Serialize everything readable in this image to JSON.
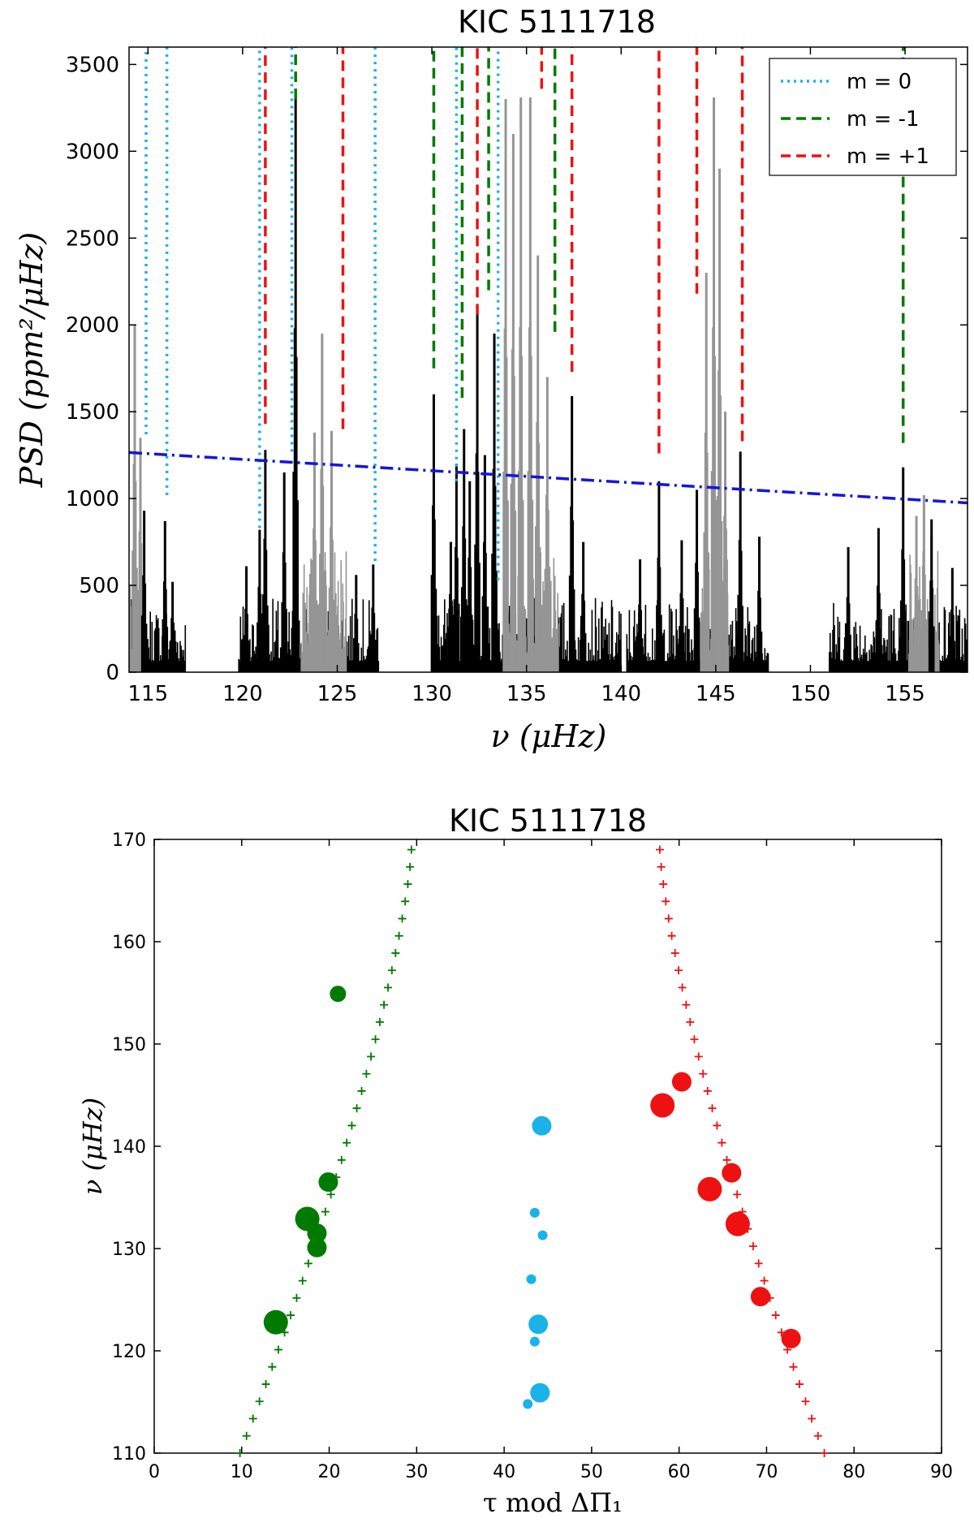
{
  "chart_data": [
    {
      "type": "line",
      "title": "KIC 5111718",
      "xlabel": "ν (μHz)",
      "ylabel": "PSD (ppm²/μHz)",
      "xlim": [
        114,
        158.3
      ],
      "ylim": [
        0,
        3600
      ],
      "xticks": [
        "115",
        "120",
        "125",
        "130",
        "135",
        "140",
        "145",
        "150",
        "155"
      ],
      "xtick_values": [
        115,
        120,
        125,
        130,
        135,
        140,
        145,
        150,
        155
      ],
      "yticks": [
        "0",
        "500",
        "1000",
        "1500",
        "2000",
        "2500",
        "3000",
        "3500"
      ],
      "ytick_values": [
        0,
        500,
        1000,
        1500,
        2000,
        2500,
        3000,
        3500
      ],
      "legend_position": "top-right",
      "legend": [
        {
          "label": "m = 0",
          "color": "#1ab2e8",
          "style": "dotted"
        },
        {
          "label": "m = -1",
          "color": "#007a00",
          "style": "dashed"
        },
        {
          "label": "m = +1",
          "color": "#ee1111",
          "style": "dashed"
        }
      ],
      "threshold_line": {
        "x": [
          114,
          158.3
        ],
        "y": [
          1265,
          975
        ],
        "color": "#1515dd",
        "style": "dashdot"
      },
      "spectrum": {
        "color_black": "#000000",
        "color_gray": "#959595",
        "black_segments": [
          [
            114,
            117
          ],
          [
            119.8,
            127.2
          ],
          [
            130,
            140
          ],
          [
            140.3,
            147.8
          ],
          [
            151,
            158.3
          ]
        ],
        "gray_segments": [
          [
            114,
            114.8
          ],
          [
            123.1,
            125.5
          ],
          [
            133.8,
            136.7
          ],
          [
            144.2,
            145.7
          ],
          [
            155.2,
            156.8
          ]
        ],
        "peaks_black": [
          {
            "nu": 114.8,
            "psd": 930
          },
          {
            "nu": 115.9,
            "psd": 870
          },
          {
            "nu": 116.3,
            "psd": 520
          },
          {
            "nu": 120.2,
            "psd": 610
          },
          {
            "nu": 120.9,
            "psd": 820
          },
          {
            "nu": 121.2,
            "psd": 1280
          },
          {
            "nu": 122.2,
            "psd": 1150
          },
          {
            "nu": 122.8,
            "psd": 3300
          },
          {
            "nu": 126.0,
            "psd": 560
          },
          {
            "nu": 126.9,
            "psd": 620
          },
          {
            "nu": 130.1,
            "psd": 1600
          },
          {
            "nu": 131.0,
            "psd": 750
          },
          {
            "nu": 131.3,
            "psd": 1200
          },
          {
            "nu": 131.7,
            "psd": 1400
          },
          {
            "nu": 132.0,
            "psd": 1100
          },
          {
            "nu": 132.4,
            "psd": 2100
          },
          {
            "nu": 132.8,
            "psd": 1250
          },
          {
            "nu": 133.3,
            "psd": 1950
          },
          {
            "nu": 137.4,
            "psd": 1590
          },
          {
            "nu": 138.0,
            "psd": 750
          },
          {
            "nu": 141.0,
            "psd": 650
          },
          {
            "nu": 142.0,
            "psd": 1100
          },
          {
            "nu": 143.2,
            "psd": 760
          },
          {
            "nu": 144.0,
            "psd": 1050
          },
          {
            "nu": 146.3,
            "psd": 1270
          },
          {
            "nu": 147.3,
            "psd": 780
          },
          {
            "nu": 152.0,
            "psd": 720
          },
          {
            "nu": 153.6,
            "psd": 830
          },
          {
            "nu": 154.9,
            "psd": 1180
          },
          {
            "nu": 156.4,
            "psd": 880
          },
          {
            "nu": 157.5,
            "psd": 600
          }
        ],
        "peaks_gray": [
          {
            "nu": 114.3,
            "psd": 2000
          },
          {
            "nu": 114.6,
            "psd": 1350
          },
          {
            "nu": 123.8,
            "psd": 1380
          },
          {
            "nu": 124.2,
            "psd": 1950
          },
          {
            "nu": 124.7,
            "psd": 1390
          },
          {
            "nu": 133.9,
            "psd": 3300
          },
          {
            "nu": 134.3,
            "psd": 3100
          },
          {
            "nu": 134.7,
            "psd": 3310
          },
          {
            "nu": 135.2,
            "psd": 3310
          },
          {
            "nu": 135.6,
            "psd": 2400
          },
          {
            "nu": 136.1,
            "psd": 1700
          },
          {
            "nu": 144.5,
            "psd": 2300
          },
          {
            "nu": 144.9,
            "psd": 3310
          },
          {
            "nu": 145.2,
            "psd": 2900
          },
          {
            "nu": 145.5,
            "psd": 1500
          },
          {
            "nu": 155.6,
            "psd": 900
          },
          {
            "nu": 156.0,
            "psd": 1020
          },
          {
            "nu": 156.4,
            "psd": 780
          }
        ]
      },
      "mode_lines": [
        {
          "m": "0",
          "nu": 114.9,
          "y0": 1370,
          "y1": 3600
        },
        {
          "m": "0",
          "nu": 116.0,
          "y0": 1020,
          "y1": 3600
        },
        {
          "m": "0",
          "nu": 120.9,
          "y0": 830,
          "y1": 3600
        },
        {
          "m": "0",
          "nu": 122.6,
          "y0": 1270,
          "y1": 3600
        },
        {
          "m": "0",
          "nu": 127.0,
          "y0": 640,
          "y1": 3600
        },
        {
          "m": "0",
          "nu": 131.3,
          "y0": 1100,
          "y1": 3600
        },
        {
          "m": "0",
          "nu": 133.5,
          "y0": 530,
          "y1": 3600
        },
        {
          "m": "-1",
          "nu": 122.8,
          "y0": 3300,
          "y1": 3600
        },
        {
          "m": "-1",
          "nu": 130.1,
          "y0": 1750,
          "y1": 3600
        },
        {
          "m": "-1",
          "nu": 131.6,
          "y0": 1580,
          "y1": 3600
        },
        {
          "m": "-1",
          "nu": 133.0,
          "y0": 2200,
          "y1": 3600
        },
        {
          "m": "-1",
          "nu": 136.5,
          "y0": 1960,
          "y1": 3600
        },
        {
          "m": "-1",
          "nu": 154.9,
          "y0": 1320,
          "y1": 3600
        },
        {
          "m": "+1",
          "nu": 121.2,
          "y0": 1430,
          "y1": 3600
        },
        {
          "m": "+1",
          "nu": 125.3,
          "y0": 1400,
          "y1": 3600
        },
        {
          "m": "+1",
          "nu": 132.4,
          "y0": 2060,
          "y1": 3600
        },
        {
          "m": "+1",
          "nu": 135.8,
          "y0": 3360,
          "y1": 3600
        },
        {
          "m": "+1",
          "nu": 137.4,
          "y0": 1730,
          "y1": 3600
        },
        {
          "m": "+1",
          "nu": 142.0,
          "y0": 1260,
          "y1": 3600
        },
        {
          "m": "+1",
          "nu": 144.0,
          "y0": 2180,
          "y1": 3600
        },
        {
          "m": "+1",
          "nu": 146.4,
          "y0": 1330,
          "y1": 3600
        }
      ]
    },
    {
      "type": "scatter",
      "title": "KIC 5111718",
      "xlabel": "τ mod ΔΠ₁",
      "ylabel": "ν (μHz)",
      "xlim": [
        0,
        90
      ],
      "ylim": [
        110,
        170
      ],
      "xticks": [
        "0",
        "10",
        "20",
        "30",
        "40",
        "50",
        "60",
        "70",
        "80",
        "90"
      ],
      "xtick_values": [
        0,
        10,
        20,
        30,
        40,
        50,
        60,
        70,
        80,
        90
      ],
      "yticks": [
        "110",
        "120",
        "130",
        "140",
        "150",
        "160",
        "170"
      ],
      "ytick_values": [
        110,
        120,
        130,
        140,
        150,
        160,
        170
      ],
      "model_series": [
        {
          "name": "m = -1 model",
          "color": "#007a00",
          "marker": "+",
          "x0": 9.8,
          "x1": 29.4,
          "n": 36
        },
        {
          "name": "m = +1 model",
          "color": "#ee1111",
          "marker": "+",
          "x0": 76.6,
          "x1": 57.8,
          "n": 36
        }
      ],
      "observed": [
        {
          "m": "-1",
          "color": "#007a00",
          "points": [
            {
              "x": 21.0,
              "y": 154.9,
              "size": "small"
            },
            {
              "x": 19.9,
              "y": 136.5,
              "size": "medium"
            },
            {
              "x": 17.5,
              "y": 132.9,
              "size": "large"
            },
            {
              "x": 18.6,
              "y": 131.5,
              "size": "medium"
            },
            {
              "x": 18.6,
              "y": 130.1,
              "size": "medium"
            },
            {
              "x": 13.9,
              "y": 122.8,
              "size": "large"
            }
          ]
        },
        {
          "m": "0",
          "color": "#1ab2e8",
          "points": [
            {
              "x": 44.3,
              "y": 142.0,
              "size": "medium"
            },
            {
              "x": 43.5,
              "y": 133.5,
              "size": "tiny"
            },
            {
              "x": 44.4,
              "y": 131.3,
              "size": "tiny"
            },
            {
              "x": 43.1,
              "y": 127.0,
              "size": "tiny"
            },
            {
              "x": 43.9,
              "y": 122.6,
              "size": "medium"
            },
            {
              "x": 43.5,
              "y": 120.9,
              "size": "tiny"
            },
            {
              "x": 44.1,
              "y": 115.9,
              "size": "medium"
            },
            {
              "x": 42.7,
              "y": 114.8,
              "size": "tiny"
            }
          ]
        },
        {
          "m": "+1",
          "color": "#ee1111",
          "points": [
            {
              "x": 60.3,
              "y": 146.3,
              "size": "medium"
            },
            {
              "x": 58.1,
              "y": 144.0,
              "size": "large"
            },
            {
              "x": 66.0,
              "y": 137.4,
              "size": "medium"
            },
            {
              "x": 63.5,
              "y": 135.8,
              "size": "large"
            },
            {
              "x": 66.7,
              "y": 132.4,
              "size": "large"
            },
            {
              "x": 69.3,
              "y": 125.3,
              "size": "medium"
            },
            {
              "x": 72.8,
              "y": 121.2,
              "size": "medium"
            }
          ]
        }
      ]
    }
  ]
}
